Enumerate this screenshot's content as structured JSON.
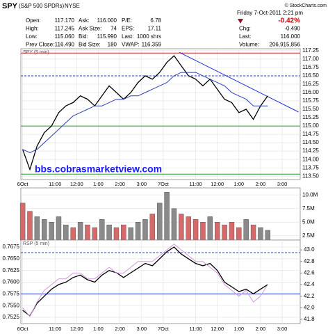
{
  "header": {
    "symbol": "SPY",
    "name": "(S&P 500 SPDRs)",
    "exchange": "NYSE",
    "copyright": "© StockCharts.com",
    "date": "Friday  7-Oct-2011  2:21 pm",
    "change_pct": "-0.42%",
    "quotes": [
      [
        [
          "Open:",
          "117.170"
        ],
        [
          "Ask:",
          "116.000"
        ],
        [
          "P/E:",
          "6.78"
        ]
      ],
      [
        [
          "High:",
          "117.245"
        ],
        [
          "Ask Size:",
          "74"
        ],
        [
          "EPS:",
          "17.11"
        ]
      ],
      [
        [
          "Low:",
          "115.060"
        ],
        [
          "Bid:",
          "115.990"
        ],
        [
          "Last:",
          "1000 shrs"
        ]
      ],
      [
        [
          "Prev Close:",
          "116.490"
        ],
        [
          "Bid Size:",
          "180"
        ],
        [
          "VWAP:",
          "116.359"
        ]
      ]
    ],
    "right": [
      [
        "Chg:",
        "-0.490"
      ],
      [
        "Last:",
        "116.000"
      ],
      [
        "Volume:",
        "206,915,856"
      ]
    ]
  },
  "chart_data": [
    {
      "type": "line",
      "title": "SPY (5 min)",
      "annotation": "bbs.cobrasmarketview.com",
      "grid": true,
      "x": [
        0,
        4,
        8,
        12,
        16,
        20,
        24,
        28,
        32,
        36,
        40,
        44,
        48,
        52,
        56,
        60,
        64,
        68,
        72,
        76,
        80,
        84,
        88,
        92,
        96,
        100,
        104,
        108,
        112,
        116,
        120,
        124,
        128,
        132,
        136
      ],
      "xlim": [
        -1,
        154
      ],
      "xticks": [
        {
          "value": 0,
          "label": "6Oct"
        },
        {
          "value": 18,
          "label": "11:00"
        },
        {
          "value": 30,
          "label": "12:00"
        },
        {
          "value": 42,
          "label": "1:00"
        },
        {
          "value": 54,
          "label": "2:00"
        },
        {
          "value": 66,
          "label": "3:00"
        },
        {
          "value": 78,
          "label": "7Oct"
        },
        {
          "value": 96,
          "label": "11:00"
        },
        {
          "value": 108,
          "label": "12:00"
        },
        {
          "value": 120,
          "label": "1:00"
        },
        {
          "value": 132,
          "label": "2:00"
        },
        {
          "value": 144,
          "label": "3:00"
        }
      ],
      "ylim": [
        113.4,
        117.31
      ],
      "yticks": [
        {
          "value": 113.5,
          "label": "113.50"
        },
        113.75,
        {
          "value": 114,
          "label": "114.00"
        },
        114.25,
        {
          "value": 114.5,
          "label": "114.50"
        },
        114.75,
        {
          "value": 115,
          "label": "115.00"
        },
        115.25,
        {
          "value": 115.5,
          "label": "115.50"
        },
        115.75,
        {
          "value": 116,
          "label": "116.00"
        },
        116.25,
        {
          "value": 116.5,
          "label": "116.50"
        },
        116.75,
        {
          "value": 117,
          "label": "117.00"
        },
        117.25
      ],
      "series": [
        {
          "color": "#000000",
          "values": [
            114.3,
            113.7,
            114.4,
            114.8,
            115.0,
            115.4,
            115.6,
            115.7,
            115.9,
            115.8,
            115.6,
            115.9,
            116.2,
            116.0,
            115.8,
            116.0,
            116.3,
            116.5,
            116.4,
            116.6,
            116.9,
            117.1,
            116.8,
            116.5,
            116.4,
            116.2,
            116.4,
            116.1,
            115.8,
            115.7,
            115.4,
            115.5,
            115.2,
            115.6,
            115.9
          ]
        },
        {
          "color": "#2a3fb0",
          "values": [
            114.3,
            114.2,
            114.3,
            114.5,
            114.7,
            114.9,
            115.1,
            115.3,
            115.4,
            115.5,
            115.6,
            115.6,
            115.7,
            115.8,
            115.8,
            115.9,
            115.9,
            116.0,
            116.1,
            116.2,
            116.3,
            116.5,
            116.6,
            116.6,
            116.6,
            116.5,
            116.4,
            116.3,
            116.2,
            116.0,
            115.9,
            115.8,
            115.6,
            115.6,
            115.6
          ]
        }
      ],
      "hlines": [
        {
          "value": 117.18,
          "color": "#cc2222"
        },
        {
          "value": 116.5,
          "color": "#2233cc",
          "dashed": true
        },
        {
          "value": 115.0,
          "color": "#2e9a2e"
        },
        {
          "value": 113.56,
          "color": "#2e9a2e"
        }
      ],
      "trendline": {
        "color": "#2233cc",
        "x": [
          87,
          153
        ],
        "y": [
          117.2,
          115.42
        ]
      }
    },
    {
      "type": "bar",
      "grid": true,
      "x": [
        0,
        4,
        8,
        12,
        16,
        20,
        24,
        28,
        32,
        36,
        40,
        44,
        48,
        52,
        56,
        60,
        64,
        68,
        72,
        76,
        80,
        84,
        88,
        92,
        96,
        100,
        104,
        108,
        112,
        116,
        120,
        124,
        128,
        132,
        136
      ],
      "xlim": [
        -1,
        154
      ],
      "ylim": [
        1.7,
        11.3
      ],
      "yticks": [
        {
          "value": 2.5,
          "label": "2.5M"
        },
        {
          "value": 5,
          "label": "5.0M"
        },
        {
          "value": 7.5,
          "label": "7.5M"
        },
        {
          "value": 10,
          "label": "10.0M"
        }
      ],
      "values": [
        8.5,
        7.0,
        6.0,
        5.5,
        5.0,
        6.0,
        4.5,
        4.0,
        5.0,
        4.5,
        4.0,
        5.5,
        4.5,
        4.0,
        4.5,
        4.0,
        5.0,
        5.5,
        6.5,
        8.5,
        10.5,
        7.5,
        6.5,
        6.0,
        5.5,
        5.0,
        6.0,
        5.0,
        4.5,
        5.0,
        4.0,
        5.5,
        4.5,
        4.0,
        3.5
      ],
      "colors": [
        "#d46a6a",
        "#d46a6a",
        "#8a8a8a",
        "#8a8a8a",
        "#8a8a8a",
        "#8a8a8a",
        "#8a8a8a",
        "#d46a6a",
        "#8a8a8a",
        "#d46a6a",
        "#d46a6a",
        "#8a8a8a",
        "#8a8a8a",
        "#d46a6a",
        "#d46a6a",
        "#8a8a8a",
        "#8a8a8a",
        "#8a8a8a",
        "#d46a6a",
        "#8a8a8a",
        "#8a8a8a",
        "#8a8a8a",
        "#d46a6a",
        "#d46a6a",
        "#d46a6a",
        "#d46a6a",
        "#8a8a8a",
        "#d46a6a",
        "#d46a6a",
        "#d46a6a",
        "#d46a6a",
        "#8a8a8a",
        "#d46a6a",
        "#8a8a8a",
        "#8a8a8a"
      ]
    },
    {
      "type": "line",
      "title": "RSP (5 min)",
      "grid": true,
      "x": [
        0,
        4,
        8,
        12,
        16,
        20,
        24,
        28,
        32,
        36,
        40,
        44,
        48,
        52,
        56,
        60,
        64,
        68,
        72,
        76,
        80,
        84,
        88,
        92,
        96,
        100,
        104,
        108,
        112,
        116,
        120,
        124,
        128,
        132,
        136
      ],
      "xlim": [
        -1,
        154
      ],
      "xticks": [
        {
          "value": 0,
          "label": "6Oct"
        },
        {
          "value": 18,
          "label": "11:00"
        },
        {
          "value": 30,
          "label": "12:00"
        },
        {
          "value": 42,
          "label": "1:00"
        },
        {
          "value": 54,
          "label": "2:00"
        },
        {
          "value": 66,
          "label": "3:00"
        },
        {
          "value": 78,
          "label": "7Oct"
        },
        {
          "value": 96,
          "label": "11:00"
        },
        {
          "value": 108,
          "label": "12:00"
        },
        {
          "value": 120,
          "label": "1:00"
        },
        {
          "value": 132,
          "label": "2:00"
        },
        {
          "value": 144,
          "label": "3:00"
        }
      ],
      "ylim": [
        0.75116,
        0.76899
      ],
      "yticks": [
        0.7525,
        {
          "value": 0.755,
          "label": "0.7550"
        },
        0.7575,
        {
          "value": 0.76,
          "label": "0.7600"
        },
        0.7625,
        {
          "value": 0.765,
          "label": "0.7650"
        },
        0.7675
      ],
      "y2lim": [
        41.727,
        43.17
      ],
      "y2ticks": [
        41.8,
        {
          "value": 42,
          "label": "42.0"
        },
        42.2,
        42.4,
        42.6,
        42.8,
        {
          "value": 43,
          "label": "43.0"
        }
      ],
      "series": [
        {
          "color": "#000000",
          "values": [
            0.754,
            0.7528,
            0.7555,
            0.757,
            0.7585,
            0.7595,
            0.76,
            0.761,
            0.7615,
            0.7605,
            0.76,
            0.7615,
            0.7625,
            0.762,
            0.761,
            0.762,
            0.763,
            0.764,
            0.7635,
            0.765,
            0.7665,
            0.7675,
            0.766,
            0.765,
            0.764,
            0.7635,
            0.764,
            0.7625,
            0.76,
            0.759,
            0.758,
            0.7585,
            0.7575,
            0.7585,
            0.7595
          ]
        },
        {
          "color": "#d49ae0",
          "axis": "y2",
          "values": [
            42.0,
            41.85,
            42.1,
            42.3,
            42.4,
            42.5,
            42.5,
            42.6,
            42.6,
            42.5,
            42.5,
            42.6,
            42.7,
            42.6,
            42.6,
            42.7,
            42.8,
            42.8,
            42.8,
            42.9,
            43.0,
            43.1,
            43.0,
            42.9,
            42.8,
            42.8,
            42.7,
            42.6,
            42.4,
            42.3,
            42.2,
            42.3,
            42.1,
            42.2,
            42.4
          ]
        }
      ],
      "hlines": [
        {
          "value": 0.7663,
          "color": "#2233cc",
          "dashed": true
        },
        {
          "value": 0.7575,
          "color": "#2233cc"
        }
      ]
    }
  ]
}
